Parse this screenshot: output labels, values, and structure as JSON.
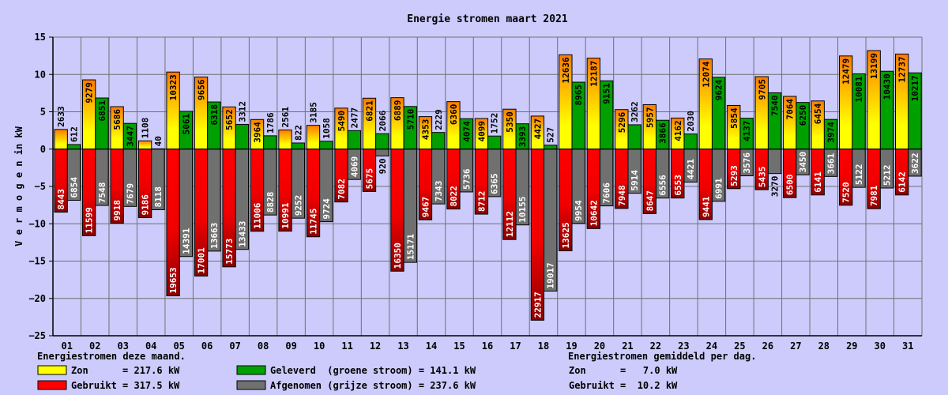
{
  "chart_data": {
    "type": "bar",
    "title": "Energie stromen maart 2021",
    "ylabel": "V e r m o g e n  in kW",
    "ylim": [
      -25,
      15
    ],
    "yticks": [
      15,
      10,
      5,
      0,
      -5,
      -10,
      -15,
      -20,
      -25
    ],
    "grid": true,
    "categories": [
      "01",
      "02",
      "03",
      "04",
      "05",
      "06",
      "07",
      "08",
      "09",
      "10",
      "11",
      "12",
      "13",
      "14",
      "15",
      "16",
      "17",
      "18",
      "19",
      "20",
      "21",
      "22",
      "23",
      "24",
      "25",
      "26",
      "27",
      "28",
      "29",
      "30",
      "31"
    ],
    "series": [
      {
        "name": "Zon",
        "color": "#ffff00",
        "gradient_top": "#ff8000",
        "values": [
          2633,
          9279,
          5686,
          1108,
          10323,
          9656,
          5652,
          3964,
          2561,
          3185,
          5490,
          6821,
          6889,
          4353,
          6360,
          4099,
          5350,
          4427,
          12636,
          12187,
          5296,
          5957,
          4162,
          12074,
          5854,
          9705,
          7064,
          6454,
          12479,
          13199,
          12737
        ]
      },
      {
        "name": "Geleverd",
        "color": "#00a000",
        "values": [
          612,
          6851,
          3447,
          40,
          5061,
          6318,
          3312,
          1786,
          822,
          1058,
          2477,
          2066,
          5710,
          2229,
          4074,
          1752,
          3393,
          527,
          8965,
          9151,
          3262,
          3866,
          2030,
          9624,
          4137,
          7540,
          6250,
          3974,
          10081,
          10430,
          10217
        ]
      },
      {
        "name": "Gebruikt",
        "color": "#ff0000",
        "gradient_bottom": "#800000",
        "values": [
          8443,
          11599,
          9918,
          9186,
          19653,
          17001,
          15773,
          11006,
          10991,
          11745,
          7082,
          5675,
          16350,
          9467,
          8022,
          8712,
          12112,
          22917,
          13625,
          10642,
          7948,
          8647,
          6553,
          9441,
          5293,
          5435,
          6500,
          6141,
          7520,
          7981,
          6142
        ]
      },
      {
        "name": "Afgenomen",
        "color": "#707070",
        "values": [
          6854,
          7548,
          7679,
          8118,
          14391,
          13663,
          13433,
          8828,
          9252,
          9724,
          4069,
          920,
          15171,
          7343,
          5736,
          6365,
          10155,
          19017,
          9954,
          7606,
          5914,
          6556,
          4421,
          6991,
          3576,
          3270,
          3450,
          3661,
          5122,
          5212,
          3622
        ]
      }
    ]
  },
  "legend": {
    "month_heading": "Energiestromen deze maand.",
    "avg_heading": "Energiestromen gemiddeld per dag.",
    "items": [
      {
        "key": "zon",
        "text": "Zon      = 217.6 kW",
        "color": "#ffff00"
      },
      {
        "key": "gebruikt",
        "text": "Gebruikt = 317.5 kW",
        "color": "#ff0000"
      },
      {
        "key": "geleverd",
        "text": "Geleverd  (groene stroom) = 141.1 kW",
        "color": "#00a000"
      },
      {
        "key": "afgenomen",
        "text": "Afgenomen (grijze stroom) = 237.6 kW",
        "color": "#707070"
      }
    ],
    "avg_items": [
      {
        "key": "avg-zon",
        "text": "Zon      =   7.0 kW"
      },
      {
        "key": "avg-gebruikt",
        "text": "Gebruikt =  10.2 kW"
      }
    ]
  }
}
